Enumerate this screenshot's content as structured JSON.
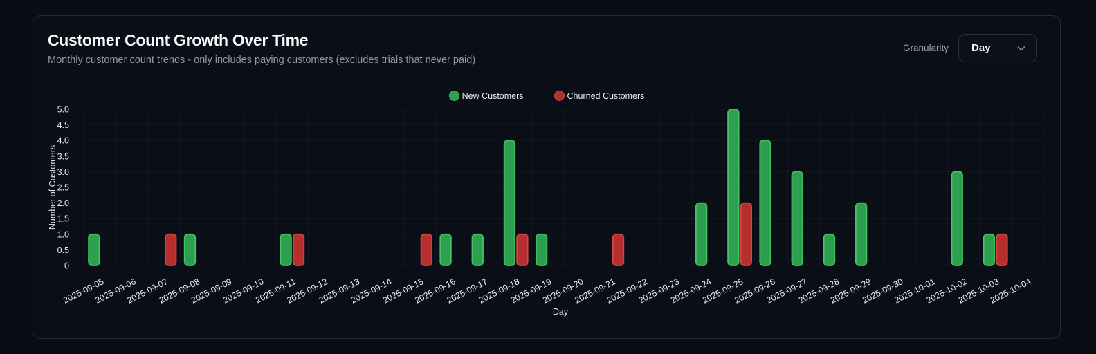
{
  "card": {
    "title": "Customer Count Growth Over Time",
    "subtitle": "Monthly customer count trends - only includes paying customers (excludes trials that never paid)"
  },
  "granularity": {
    "label": "Granularity",
    "selected": "Day",
    "chevron_icon": "chevron-down"
  },
  "legend": [
    {
      "label": "New Customers",
      "fill": "#2da04d",
      "stroke": "#46c268"
    },
    {
      "label": "Churned Customers",
      "fill": "#b62f2f",
      "stroke": "#d14747"
    }
  ],
  "chart_data": {
    "type": "bar",
    "title": "Customer Count Growth Over Time",
    "xlabel": "Day",
    "ylabel": "Number of Customers",
    "ylim": [
      0,
      5
    ],
    "ytick_step": 0.5,
    "ytick_labels": [
      "0",
      "0.5",
      "1.0",
      "1.5",
      "2.0",
      "2.5",
      "3.0",
      "3.5",
      "4.0",
      "4.5",
      "5.0"
    ],
    "grid": true,
    "legend_position": "top-center",
    "categories": [
      "2025-09-05",
      "2025-09-06",
      "2025-09-07",
      "2025-09-08",
      "2025-09-09",
      "2025-09-10",
      "2025-09-11",
      "2025-09-12",
      "2025-09-13",
      "2025-09-14",
      "2025-09-15",
      "2025-09-16",
      "2025-09-17",
      "2025-09-18",
      "2025-09-19",
      "2025-09-20",
      "2025-09-21",
      "2025-09-22",
      "2025-09-23",
      "2025-09-24",
      "2025-09-25",
      "2025-09-26",
      "2025-09-27",
      "2025-09-28",
      "2025-09-29",
      "2025-09-30",
      "2025-10-01",
      "2025-10-02",
      "2025-10-03",
      "2025-10-04"
    ],
    "series": [
      {
        "name": "New Customers",
        "fill": "#2da04d",
        "stroke": "#46c268",
        "values": [
          1,
          0,
          0,
          1,
          0,
          0,
          1,
          0,
          0,
          0,
          0,
          1,
          1,
          4,
          1,
          0,
          0,
          0,
          0,
          2,
          5,
          4,
          3,
          1,
          2,
          0,
          0,
          3,
          1,
          0
        ]
      },
      {
        "name": "Churned Customers",
        "fill": "#b62f2f",
        "stroke": "#d14747",
        "values": [
          0,
          0,
          1,
          0,
          0,
          0,
          1,
          0,
          0,
          0,
          1,
          0,
          0,
          1,
          0,
          0,
          1,
          0,
          0,
          0,
          2,
          0,
          0,
          0,
          0,
          0,
          0,
          0,
          1,
          0
        ]
      }
    ]
  },
  "colors": {
    "background": "#0a0d14",
    "card_background": "#0a0e16",
    "card_border": "#242a37",
    "grid": "rgba(255,255,255,0.045)",
    "tick_text": "#e7ebf1",
    "axis_title": "#e2e6ee"
  }
}
